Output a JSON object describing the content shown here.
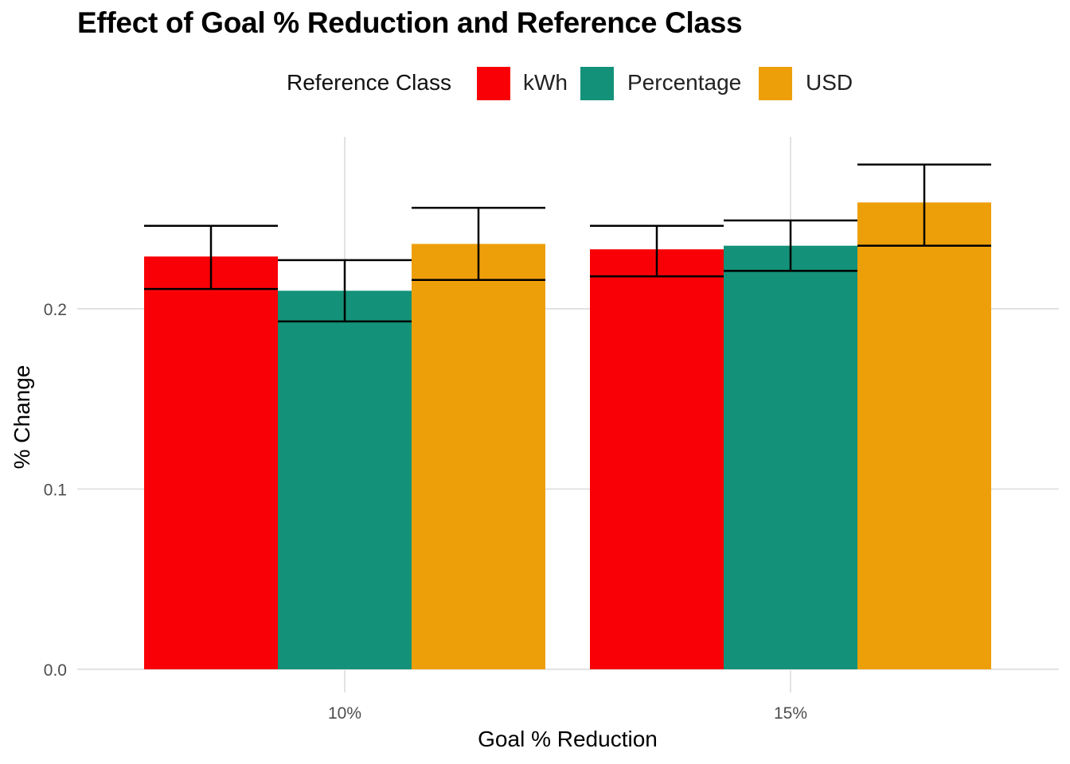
{
  "chart_data": {
    "type": "bar",
    "title": "Effect of Goal % Reduction and Reference Class",
    "xlabel": "Goal % Reduction",
    "ylabel": "% Change",
    "categories": [
      "10%",
      "15%"
    ],
    "legend_title": "Reference Class",
    "legend_position": "top",
    "grid": true,
    "ylim": [
      0,
      0.28
    ],
    "yticks": [
      0.0,
      0.1,
      0.2
    ],
    "ytick_labels": [
      "0.0",
      "0.1",
      "0.2"
    ],
    "series": [
      {
        "name": "kWh",
        "color": "#F90006",
        "values": [
          0.229,
          0.233
        ],
        "error_low": [
          0.211,
          0.218
        ],
        "error_high": [
          0.246,
          0.246
        ]
      },
      {
        "name": "Percentage",
        "color": "#139279",
        "values": [
          0.21,
          0.235
        ],
        "error_low": [
          0.193,
          0.221
        ],
        "error_high": [
          0.227,
          0.249
        ]
      },
      {
        "name": "USD",
        "color": "#ED9F0A",
        "values": [
          0.236,
          0.259
        ],
        "error_low": [
          0.216,
          0.235
        ],
        "error_high": [
          0.256,
          0.28
        ]
      }
    ]
  }
}
